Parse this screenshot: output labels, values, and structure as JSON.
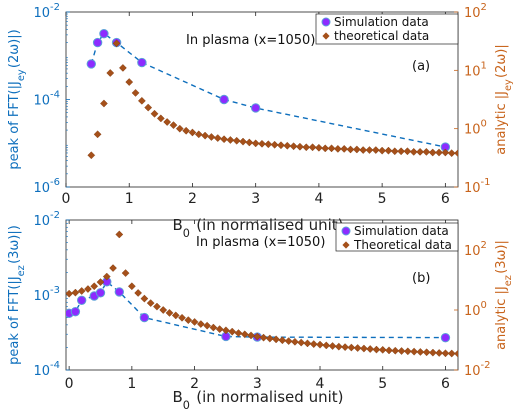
{
  "chart_data": [
    {
      "type": "scatter",
      "panel_label": "(a)",
      "annotation": "In plasma (x=1050)",
      "xlabel": "B_0 (in normalised unit)",
      "ylabel_left": "peak of FFT(|J_ey(2ω)|)",
      "ylabel_right": "analytic |J_ey(2ω)|",
      "xlim": [
        0,
        6.2
      ],
      "ylim_left": [
        1e-06,
        0.01
      ],
      "ylim_right": [
        0.1,
        100
      ],
      "yscale": "log",
      "x_ticks": [
        "0",
        "1",
        "2",
        "3",
        "4",
        "5",
        "6"
      ],
      "y_ticks_left": [
        {
          "base": "10",
          "exp": "-6"
        },
        {
          "base": "10",
          "exp": "-4"
        },
        {
          "base": "10",
          "exp": "-2"
        }
      ],
      "y_ticks_right": [
        {
          "base": "10",
          "exp": "-1"
        },
        {
          "base": "10",
          "exp": "0"
        },
        {
          "base": "10",
          "exp": "1"
        },
        {
          "base": "10",
          "exp": "2"
        }
      ],
      "legend_position": "top-right",
      "series": [
        {
          "name": "Simulation data",
          "axis": "left",
          "color": "#8d2bff",
          "line_color": "#0e6fbd",
          "marker": "circle",
          "x": [
            0.4,
            0.5,
            0.6,
            0.8,
            1.2,
            2.5,
            3.0,
            6.0
          ],
          "y": [
            0.00065,
            0.002,
            0.0032,
            0.002,
            0.0007,
            0.0001,
            6.4e-05,
            8.2e-06
          ]
        },
        {
          "name": "theoretical data",
          "axis": "right",
          "color": "#a5501a",
          "marker": "diamond",
          "x": [
            0.4,
            0.5,
            0.6,
            0.7,
            0.8,
            0.9,
            1.0,
            1.1,
            1.2,
            1.3,
            1.4,
            1.5,
            1.6,
            1.7,
            1.8,
            1.9,
            2.0,
            2.1,
            2.2,
            2.3,
            2.4,
            2.5,
            2.6,
            2.7,
            2.8,
            2.9,
            3.0,
            3.1,
            3.2,
            3.3,
            3.4,
            3.5,
            3.6,
            3.7,
            3.8,
            3.9,
            4.0,
            4.1,
            4.2,
            4.3,
            4.4,
            4.5,
            4.6,
            4.7,
            4.8,
            4.9,
            5.0,
            5.1,
            5.2,
            5.3,
            5.4,
            5.5,
            5.6,
            5.7,
            5.8,
            5.9,
            6.0,
            6.1,
            6.2
          ],
          "y": [
            0.35,
            0.8,
            2.7,
            9.0,
            29.0,
            11.0,
            6.3,
            4.1,
            3.0,
            2.3,
            1.8,
            1.5,
            1.3,
            1.15,
            1.0,
            0.92,
            0.86,
            0.8,
            0.76,
            0.72,
            0.69,
            0.66,
            0.64,
            0.62,
            0.6,
            0.58,
            0.56,
            0.55,
            0.54,
            0.53,
            0.52,
            0.51,
            0.5,
            0.49,
            0.48,
            0.48,
            0.47,
            0.46,
            0.46,
            0.45,
            0.45,
            0.44,
            0.44,
            0.43,
            0.43,
            0.43,
            0.42,
            0.42,
            0.41,
            0.41,
            0.41,
            0.4,
            0.4,
            0.4,
            0.39,
            0.39,
            0.39,
            0.38,
            0.38
          ]
        }
      ]
    },
    {
      "type": "scatter",
      "panel_label": "(b)",
      "annotation": "In plasma (x=1050)",
      "xlabel": "B_0 (in normalised unit)",
      "ylabel_left": "peak of FFT(|J_ez(3ω)|)",
      "ylabel_right": "analytic |J_ez(3ω)|",
      "xlim": [
        -0.05,
        6.2
      ],
      "ylim_left": [
        0.0001,
        0.01
      ],
      "ylim_right": [
        0.01,
        1000
      ],
      "yscale": "log",
      "x_ticks": [
        "0",
        "1",
        "2",
        "3",
        "4",
        "5",
        "6"
      ],
      "y_ticks_left": [
        {
          "base": "10",
          "exp": "-4"
        },
        {
          "base": "10",
          "exp": "-3"
        },
        {
          "base": "10",
          "exp": "-2"
        }
      ],
      "y_ticks_right": [
        {
          "base": "10",
          "exp": "-2"
        },
        {
          "base": "10",
          "exp": "0"
        },
        {
          "base": "10",
          "exp": "2"
        }
      ],
      "legend_position": "top-right",
      "series": [
        {
          "name": "Simulation data",
          "axis": "left",
          "color": "#8d2bff",
          "line_color": "#0e6fbd",
          "marker": "circle",
          "x": [
            0.0,
            0.1,
            0.2,
            0.4,
            0.5,
            0.6,
            0.8,
            1.2,
            2.5,
            3.0,
            6.0
          ],
          "y": [
            0.00057,
            0.0006,
            0.00085,
            0.00097,
            0.00107,
            0.0015,
            0.0011,
            0.0005,
            0.00028,
            0.000275,
            0.00027
          ]
        },
        {
          "name": "Theoretical data",
          "axis": "right",
          "color": "#a5501a",
          "marker": "diamond",
          "x": [
            0.0,
            0.1,
            0.2,
            0.3,
            0.4,
            0.5,
            0.6,
            0.7,
            0.8,
            0.9,
            1.0,
            1.1,
            1.2,
            1.3,
            1.4,
            1.5,
            1.6,
            1.7,
            1.8,
            1.9,
            2.0,
            2.1,
            2.2,
            2.3,
            2.4,
            2.5,
            2.6,
            2.7,
            2.8,
            2.9,
            3.0,
            3.1,
            3.2,
            3.3,
            3.4,
            3.5,
            3.6,
            3.7,
            3.8,
            3.9,
            4.0,
            4.1,
            4.2,
            4.3,
            4.4,
            4.5,
            4.6,
            4.7,
            4.8,
            4.9,
            5.0,
            5.1,
            5.2,
            5.3,
            5.4,
            5.5,
            5.6,
            5.7,
            5.8,
            5.9,
            6.0,
            6.1,
            6.2
          ],
          "y": [
            3.5,
            3.8,
            4.3,
            5.0,
            6.2,
            8.5,
            13.0,
            25.0,
            330.0,
            17.0,
            6.2,
            3.7,
            2.4,
            1.7,
            1.3,
            1.0,
            0.8,
            0.66,
            0.55,
            0.46,
            0.4,
            0.34,
            0.3,
            0.26,
            0.23,
            0.21,
            0.19,
            0.17,
            0.155,
            0.142,
            0.13,
            0.12,
            0.112,
            0.105,
            0.098,
            0.092,
            0.087,
            0.082,
            0.077,
            0.073,
            0.07,
            0.066,
            0.063,
            0.06,
            0.058,
            0.056,
            0.054,
            0.052,
            0.05,
            0.048,
            0.047,
            0.045,
            0.044,
            0.043,
            0.042,
            0.041,
            0.04,
            0.039,
            0.038,
            0.037,
            0.036,
            0.0355,
            0.035
          ]
        }
      ]
    }
  ]
}
